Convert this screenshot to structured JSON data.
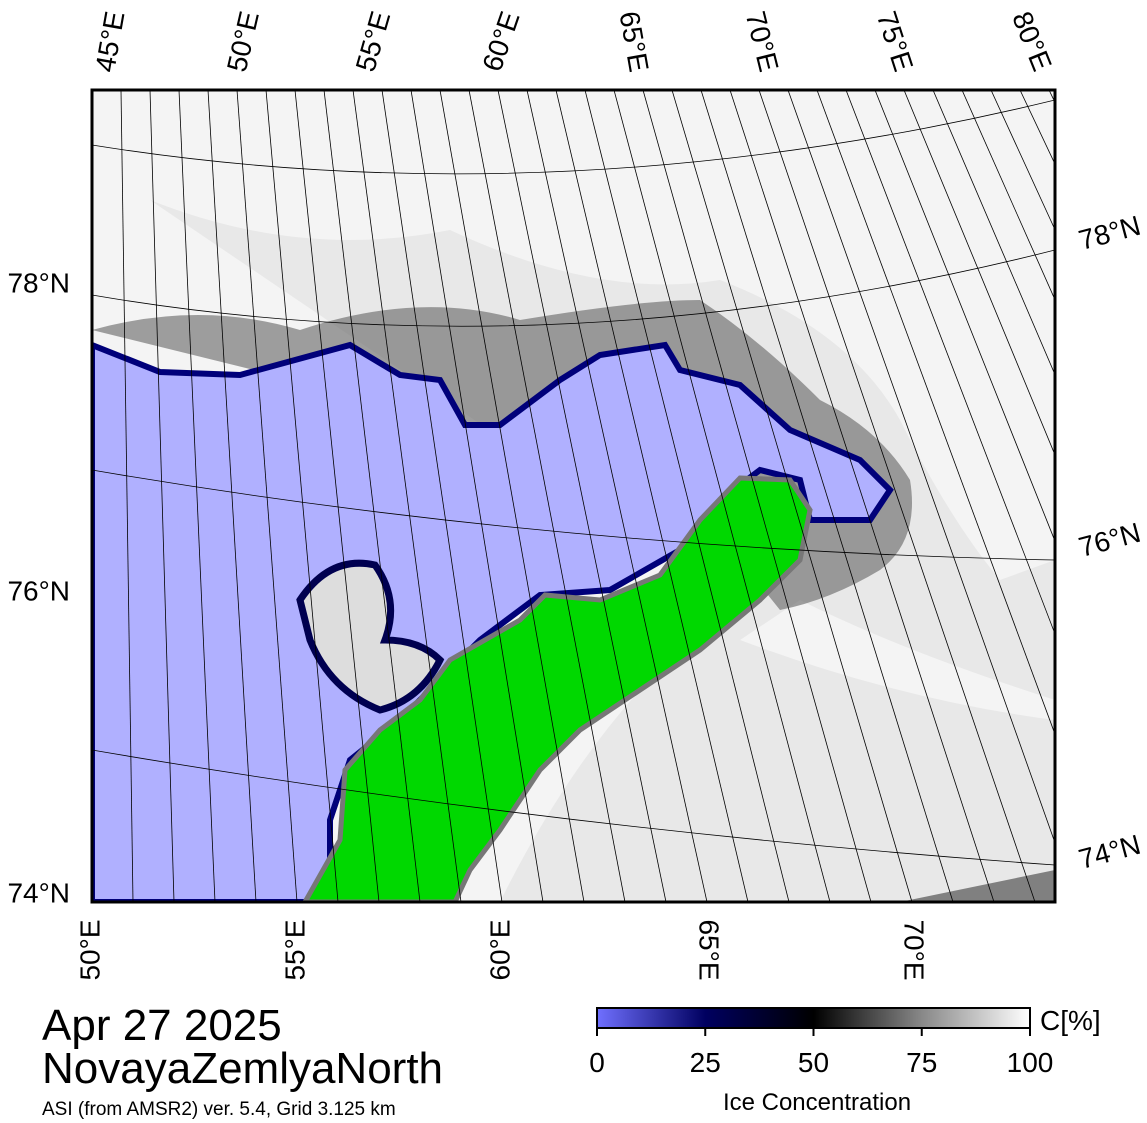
{
  "map": {
    "top_lon_labels": [
      "45°E",
      "50°E",
      "55°E",
      "60°E",
      "65°E",
      "70°E",
      "75°E",
      "80°E"
    ],
    "bottom_lon_labels": [
      "50°E",
      "55°E",
      "60°E",
      "65°E",
      "70°E"
    ],
    "left_lat_labels": [
      "78°N",
      "76°N",
      "74°N"
    ],
    "right_lat_labels": [
      "78°N",
      "76°N",
      "74°N"
    ]
  },
  "footer": {
    "date": "Apr 27 2025",
    "region": "NovayaZemlyaNorth",
    "source": "ASI (from AMSR2) ver. 5.4,  Grid 3.125 km"
  },
  "colorbar": {
    "unit": "C[%]",
    "title": "Ice Concentration",
    "range": [
      0,
      100
    ],
    "ticks": [
      0,
      25,
      50,
      75,
      100
    ]
  }
}
